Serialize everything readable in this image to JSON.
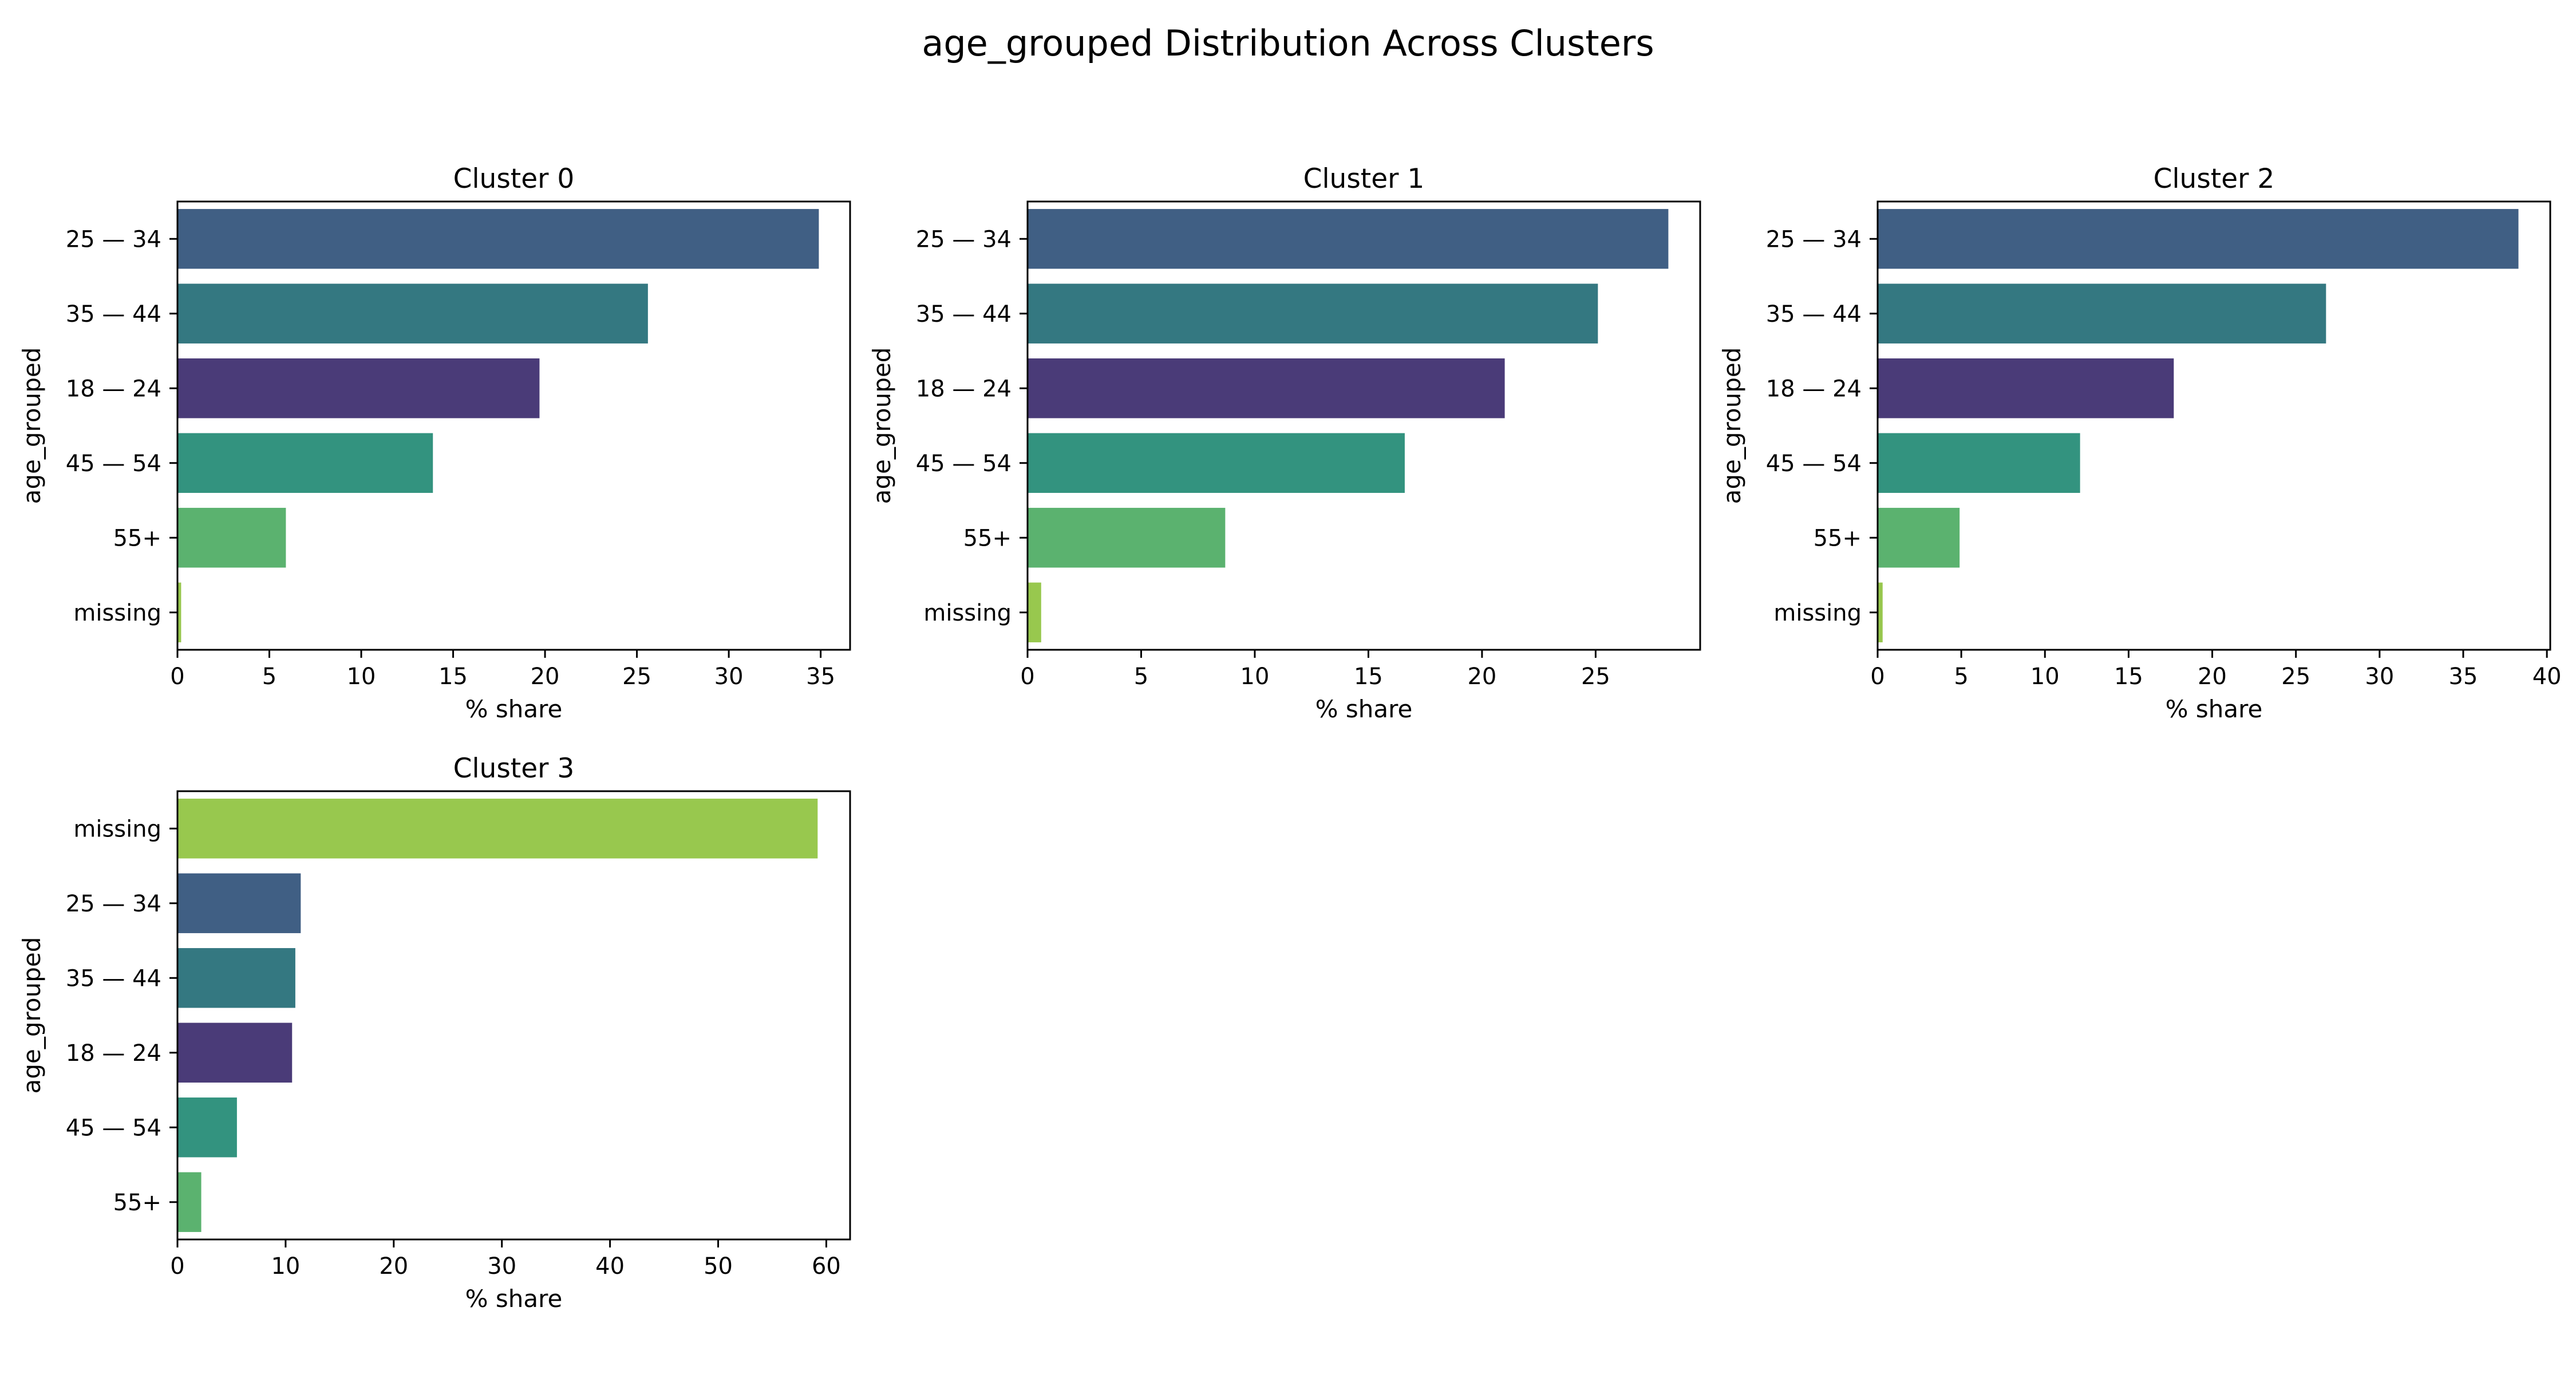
{
  "figure_title": "age_grouped Distribution Across Clusters",
  "colors": {
    "18 — 24": "#4a3b78",
    "25 — 34": "#405f84",
    "35 — 44": "#347881",
    "45 — 54": "#33937f",
    "55+": "#5bb26f",
    "missing": "#98c84e"
  },
  "chart_data": [
    {
      "type": "bar",
      "orientation": "horizontal",
      "title": "Cluster 0",
      "xlabel": "% share",
      "ylabel": "age_grouped",
      "xlim": [
        0,
        36.6
      ],
      "xticks": [
        0,
        5,
        10,
        15,
        20,
        25,
        30,
        35
      ],
      "categories": [
        "25 — 34",
        "35 — 44",
        "18 — 24",
        "45 — 54",
        "55+",
        "missing"
      ],
      "values": [
        34.9,
        25.6,
        19.7,
        13.9,
        5.9,
        0.2
      ]
    },
    {
      "type": "bar",
      "orientation": "horizontal",
      "title": "Cluster 1",
      "xlabel": "% share",
      "ylabel": "age_grouped",
      "xlim": [
        0,
        29.6
      ],
      "xticks": [
        0,
        5,
        10,
        15,
        20,
        25
      ],
      "categories": [
        "25 — 34",
        "35 — 44",
        "18 — 24",
        "45 — 54",
        "55+",
        "missing"
      ],
      "values": [
        28.2,
        25.1,
        21.0,
        16.6,
        8.7,
        0.6
      ]
    },
    {
      "type": "bar",
      "orientation": "horizontal",
      "title": "Cluster 2",
      "xlabel": "% share",
      "ylabel": "age_grouped",
      "xlim": [
        0,
        40.2
      ],
      "xticks": [
        0,
        5,
        10,
        15,
        20,
        25,
        30,
        35,
        40
      ],
      "categories": [
        "25 — 34",
        "35 — 44",
        "18 — 24",
        "45 — 54",
        "55+",
        "missing"
      ],
      "values": [
        38.3,
        26.8,
        17.7,
        12.1,
        4.9,
        0.3
      ]
    },
    {
      "type": "bar",
      "orientation": "horizontal",
      "title": "Cluster 3",
      "xlabel": "% share",
      "ylabel": "age_grouped",
      "xlim": [
        0,
        62.2
      ],
      "xticks": [
        0,
        10,
        20,
        30,
        40,
        50,
        60
      ],
      "categories": [
        "missing",
        "25 — 34",
        "35 — 44",
        "18 — 24",
        "45 — 54",
        "55+"
      ],
      "values": [
        59.2,
        11.4,
        10.9,
        10.6,
        5.5,
        2.2
      ]
    }
  ]
}
